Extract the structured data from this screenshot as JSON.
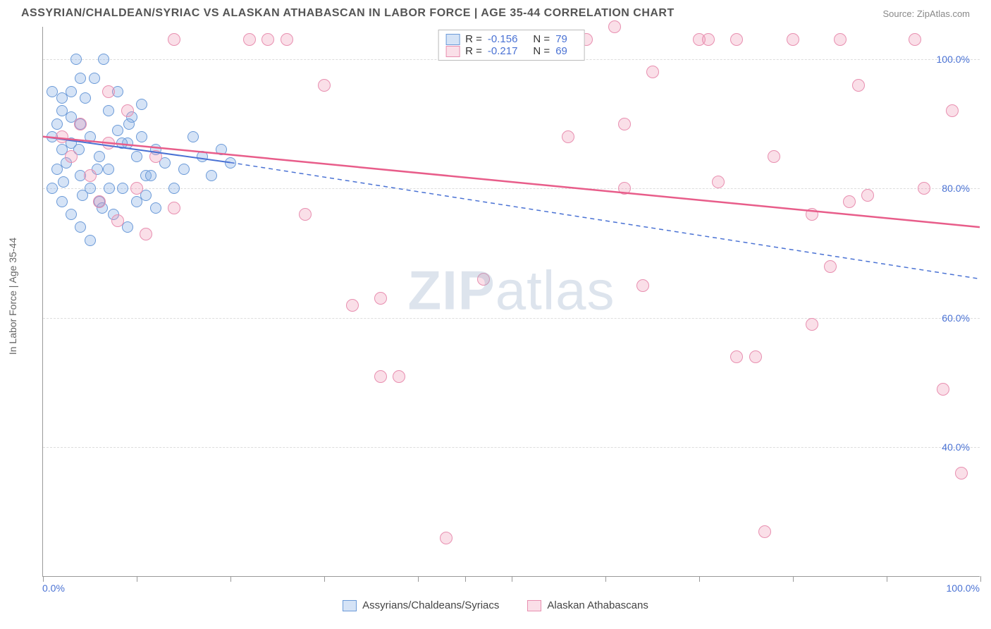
{
  "header": {
    "title": "ASSYRIAN/CHALDEAN/SYRIAC VS ALASKAN ATHABASCAN IN LABOR FORCE | AGE 35-44 CORRELATION CHART",
    "source": "Source: ZipAtlas.com"
  },
  "chart": {
    "type": "scatter",
    "y_axis_title": "In Labor Force | Age 35-44",
    "watermark_bold": "ZIP",
    "watermark_rest": "atlas",
    "xlim": [
      0,
      100
    ],
    "ylim": [
      20,
      105
    ],
    "x_tick_positions": [
      0,
      10,
      20,
      30,
      40,
      45,
      50,
      60,
      70,
      80,
      90,
      100
    ],
    "x_min_label": "0.0%",
    "x_max_label": "100.0%",
    "y_ticks": [
      {
        "v": 40,
        "label": "40.0%"
      },
      {
        "v": 60,
        "label": "60.0%"
      },
      {
        "v": 80,
        "label": "80.0%"
      },
      {
        "v": 100,
        "label": "100.0%"
      }
    ],
    "grid_color": "#dddddd",
    "background_color": "#ffffff",
    "series": [
      {
        "name": "Assyrians/Chaldeans/Syriacs",
        "R": "-0.156",
        "N": "79",
        "fill": "rgba(135,175,230,0.35)",
        "stroke": "#6b9ad8",
        "trend": {
          "x1": 0,
          "y1": 88,
          "x2": 20,
          "y2": 84,
          "dash_x2": 100,
          "dash_y2": 66,
          "color": "#4a72d4",
          "width": 2
        },
        "points": [
          [
            1,
            88
          ],
          [
            1.5,
            90
          ],
          [
            2,
            86
          ],
          [
            2,
            92
          ],
          [
            2.5,
            84
          ],
          [
            3,
            95
          ],
          [
            3,
            87
          ],
          [
            3.5,
            100
          ],
          [
            4,
            82
          ],
          [
            4,
            90
          ],
          [
            4.5,
            94
          ],
          [
            5,
            80
          ],
          [
            5,
            88
          ],
          [
            5.5,
            97
          ],
          [
            6,
            78
          ],
          [
            6,
            85
          ],
          [
            6.5,
            100
          ],
          [
            7,
            92
          ],
          [
            7,
            83
          ],
          [
            7.5,
            76
          ],
          [
            8,
            89
          ],
          [
            8,
            95
          ],
          [
            8.5,
            80
          ],
          [
            9,
            87
          ],
          [
            9,
            74
          ],
          [
            9.5,
            91
          ],
          [
            10,
            85
          ],
          [
            10,
            78
          ],
          [
            10.5,
            93
          ],
          [
            11,
            82
          ],
          [
            1,
            80
          ],
          [
            2,
            78
          ],
          [
            3,
            76
          ],
          [
            4,
            74
          ],
          [
            5,
            72
          ],
          [
            2,
            94
          ],
          [
            3,
            91
          ],
          [
            4,
            97
          ],
          [
            1,
            95
          ],
          [
            1.5,
            83
          ],
          [
            2.2,
            81
          ],
          [
            3.8,
            86
          ],
          [
            4.2,
            79
          ],
          [
            5.8,
            83
          ],
          [
            6.3,
            77
          ],
          [
            7.1,
            80
          ],
          [
            8.4,
            87
          ],
          [
            9.2,
            90
          ],
          [
            10.5,
            88
          ],
          [
            11,
            79
          ],
          [
            11.5,
            82
          ],
          [
            12,
            86
          ],
          [
            12,
            77
          ],
          [
            13,
            84
          ],
          [
            14,
            80
          ],
          [
            15,
            83
          ],
          [
            16,
            88
          ],
          [
            17,
            85
          ],
          [
            18,
            82
          ],
          [
            19,
            86
          ],
          [
            20,
            84
          ]
        ]
      },
      {
        "name": "Alaskan Athabascans",
        "R": "-0.217",
        "N": "69",
        "fill": "rgba(240,150,180,0.30)",
        "stroke": "#e88fb0",
        "trend": {
          "x1": 0,
          "y1": 88,
          "x2": 100,
          "y2": 74,
          "color": "#e85d8a",
          "width": 2.5
        },
        "points": [
          [
            2,
            88
          ],
          [
            3,
            85
          ],
          [
            4,
            90
          ],
          [
            5,
            82
          ],
          [
            6,
            78
          ],
          [
            7,
            87
          ],
          [
            8,
            75
          ],
          [
            9,
            92
          ],
          [
            10,
            80
          ],
          [
            11,
            73
          ],
          [
            12,
            85
          ],
          [
            14,
            77
          ],
          [
            14,
            103
          ],
          [
            7,
            95
          ],
          [
            22,
            103
          ],
          [
            24,
            103
          ],
          [
            26,
            103
          ],
          [
            28,
            76
          ],
          [
            30,
            96
          ],
          [
            33,
            62
          ],
          [
            36,
            63
          ],
          [
            36,
            51
          ],
          [
            38,
            51
          ],
          [
            43,
            26
          ],
          [
            47,
            66
          ],
          [
            54,
            103
          ],
          [
            56,
            88
          ],
          [
            57,
            103
          ],
          [
            61,
            105
          ],
          [
            62,
            90
          ],
          [
            62,
            80
          ],
          [
            64,
            65
          ],
          [
            65,
            98
          ],
          [
            70,
            103
          ],
          [
            71,
            103
          ],
          [
            72,
            81
          ],
          [
            74,
            103
          ],
          [
            74,
            54
          ],
          [
            76,
            54
          ],
          [
            77,
            27
          ],
          [
            78,
            85
          ],
          [
            80,
            103
          ],
          [
            82,
            76
          ],
          [
            82,
            59
          ],
          [
            84,
            68
          ],
          [
            85,
            103
          ],
          [
            86,
            78
          ],
          [
            87,
            96
          ],
          [
            88,
            79
          ],
          [
            93,
            103
          ],
          [
            94,
            80
          ],
          [
            96,
            49
          ],
          [
            97,
            92
          ],
          [
            98,
            36
          ],
          [
            58,
            103
          ]
        ]
      }
    ]
  },
  "bottom_legend": {
    "series_0": "Assyrians/Chaldeans/Syriacs",
    "series_1": "Alaskan Athabascans"
  }
}
